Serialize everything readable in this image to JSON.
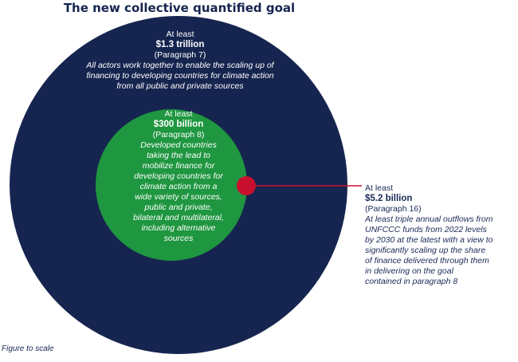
{
  "title": "The new collective quantified goal",
  "outer": {
    "prefix": "At least",
    "amount": "$1.3 trillion",
    "paragraph": "(Paragraph 7)",
    "description": [
      "All actors work together to enable the scaling up of",
      "financing to developing countries for climate action",
      "from all public and private sources"
    ]
  },
  "inner": {
    "prefix": "At least",
    "amount": "$300 billion",
    "paragraph": "(Paragraph 8)",
    "description": [
      "Developed countries",
      "taking the lead to",
      "mobilize finance for",
      "developing countries for",
      "climate action from a",
      "wide variety of sources,",
      "public and private,",
      "bilateral and multilateral,",
      "including alternative",
      "sources"
    ]
  },
  "callout": {
    "prefix": "At least",
    "amount": "$5.2 billion",
    "paragraph": "(Paragraph 16)",
    "description": [
      "At least triple annual outflows from",
      "UNFCCC funds from 2022 levels",
      "by 2030 at the latest with a view to",
      "significantly scaling up the share",
      "of finance delivered through them",
      "in delivering on the goal",
      "contained in paragraph 8"
    ]
  },
  "footnote": "Figure to scale",
  "colors": {
    "outer": "#16254f",
    "inner": "#1f9640",
    "dot": "#c8102e",
    "leader": "#c8102e",
    "title": "#16254f"
  }
}
